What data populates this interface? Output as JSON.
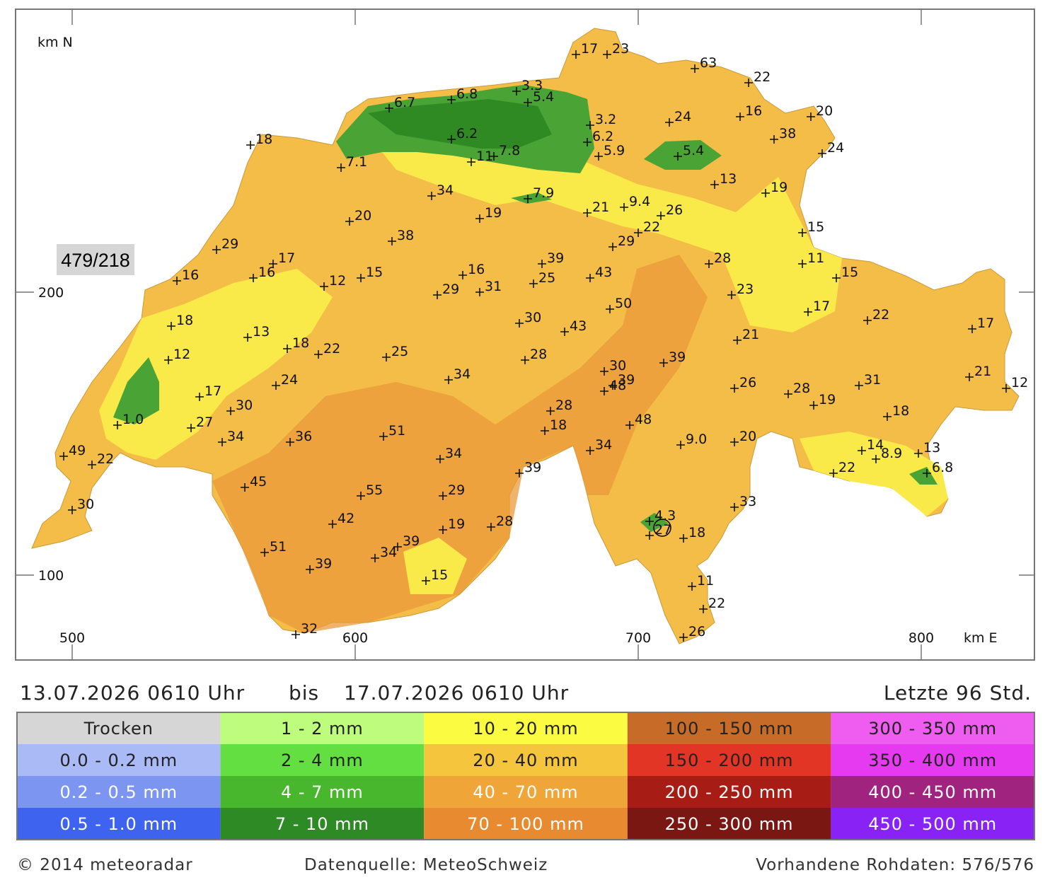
{
  "map": {
    "ylabel": "km N",
    "xlabel": "km E",
    "xlim": [
      480,
      840
    ],
    "ylim": [
      70,
      300
    ],
    "xticks": [
      500,
      600,
      700,
      800
    ],
    "yticks": [
      100,
      200
    ],
    "cursor_label": "479/218",
    "stations": [
      {
        "x": 678,
        "y": 284,
        "label": "17"
      },
      {
        "x": 689,
        "y": 284,
        "label": "23"
      },
      {
        "x": 720,
        "y": 279,
        "label": "63"
      },
      {
        "x": 739,
        "y": 274,
        "label": "22"
      },
      {
        "x": 761,
        "y": 262,
        "label": "20"
      },
      {
        "x": 736,
        "y": 262,
        "label": "16"
      },
      {
        "x": 748,
        "y": 254,
        "label": "38"
      },
      {
        "x": 765,
        "y": 249,
        "label": "24"
      },
      {
        "x": 711,
        "y": 260,
        "label": "24"
      },
      {
        "x": 683,
        "y": 259,
        "label": "3.2"
      },
      {
        "x": 682,
        "y": 253,
        "label": "6.2"
      },
      {
        "x": 686,
        "y": 248,
        "label": "5.9"
      },
      {
        "x": 714,
        "y": 248,
        "label": "5.4"
      },
      {
        "x": 727,
        "y": 238,
        "label": "13"
      },
      {
        "x": 745,
        "y": 235,
        "label": "19"
      },
      {
        "x": 758,
        "y": 221,
        "label": "15"
      },
      {
        "x": 758,
        "y": 210,
        "label": "11"
      },
      {
        "x": 770,
        "y": 205,
        "label": "15"
      },
      {
        "x": 657,
        "y": 271,
        "label": "3.3"
      },
      {
        "x": 661,
        "y": 267,
        "label": "5.4"
      },
      {
        "x": 634,
        "y": 268,
        "label": "6.8"
      },
      {
        "x": 612,
        "y": 265,
        "label": "6.7"
      },
      {
        "x": 634,
        "y": 254,
        "label": "6.2"
      },
      {
        "x": 649,
        "y": 248,
        "label": "7.8"
      },
      {
        "x": 641,
        "y": 246,
        "label": "11"
      },
      {
        "x": 595,
        "y": 244,
        "label": "7.1"
      },
      {
        "x": 563,
        "y": 252,
        "label": "18"
      },
      {
        "x": 627,
        "y": 234,
        "label": "34"
      },
      {
        "x": 661,
        "y": 233,
        "label": "7.9"
      },
      {
        "x": 644,
        "y": 226,
        "label": "19"
      },
      {
        "x": 682,
        "y": 228,
        "label": "21"
      },
      {
        "x": 695,
        "y": 230,
        "label": "9.4"
      },
      {
        "x": 708,
        "y": 227,
        "label": "26"
      },
      {
        "x": 700,
        "y": 221,
        "label": "22"
      },
      {
        "x": 691,
        "y": 216,
        "label": "29"
      },
      {
        "x": 598,
        "y": 225,
        "label": "20"
      },
      {
        "x": 613,
        "y": 218,
        "label": "38"
      },
      {
        "x": 551,
        "y": 215,
        "label": "29"
      },
      {
        "x": 571,
        "y": 210,
        "label": "17"
      },
      {
        "x": 564,
        "y": 205,
        "label": "16"
      },
      {
        "x": 537,
        "y": 204,
        "label": "16"
      },
      {
        "x": 589,
        "y": 202,
        "label": "12"
      },
      {
        "x": 602,
        "y": 205,
        "label": "15"
      },
      {
        "x": 638,
        "y": 206,
        "label": "16"
      },
      {
        "x": 666,
        "y": 210,
        "label": "39"
      },
      {
        "x": 663,
        "y": 203,
        "label": "25"
      },
      {
        "x": 683,
        "y": 205,
        "label": "43"
      },
      {
        "x": 629,
        "y": 199,
        "label": "29"
      },
      {
        "x": 644,
        "y": 200,
        "label": "31"
      },
      {
        "x": 690,
        "y": 194,
        "label": "50"
      },
      {
        "x": 725,
        "y": 210,
        "label": "28"
      },
      {
        "x": 733,
        "y": 199,
        "label": "23"
      },
      {
        "x": 760,
        "y": 193,
        "label": "17"
      },
      {
        "x": 781,
        "y": 190,
        "label": "22"
      },
      {
        "x": 818,
        "y": 187,
        "label": "17"
      },
      {
        "x": 535,
        "y": 188,
        "label": "18"
      },
      {
        "x": 534,
        "y": 176,
        "label": "12"
      },
      {
        "x": 562,
        "y": 184,
        "label": "13"
      },
      {
        "x": 576,
        "y": 180,
        "label": "18"
      },
      {
        "x": 587,
        "y": 178,
        "label": "22"
      },
      {
        "x": 611,
        "y": 177,
        "label": "25"
      },
      {
        "x": 658,
        "y": 189,
        "label": "30"
      },
      {
        "x": 674,
        "y": 186,
        "label": "43"
      },
      {
        "x": 660,
        "y": 176,
        "label": "28"
      },
      {
        "x": 633,
        "y": 169,
        "label": "34"
      },
      {
        "x": 572,
        "y": 167,
        "label": "24"
      },
      {
        "x": 545,
        "y": 163,
        "label": "17"
      },
      {
        "x": 556,
        "y": 158,
        "label": "30"
      },
      {
        "x": 542,
        "y": 152,
        "label": "27"
      },
      {
        "x": 516,
        "y": 153,
        "label": "1.0"
      },
      {
        "x": 553,
        "y": 147,
        "label": "34"
      },
      {
        "x": 577,
        "y": 147,
        "label": "36"
      },
      {
        "x": 497,
        "y": 142,
        "label": "49"
      },
      {
        "x": 507,
        "y": 139,
        "label": "22"
      },
      {
        "x": 688,
        "y": 172,
        "label": "30"
      },
      {
        "x": 691,
        "y": 167,
        "label": "39"
      },
      {
        "x": 688,
        "y": 165,
        "label": "48"
      },
      {
        "x": 709,
        "y": 175,
        "label": "39"
      },
      {
        "x": 735,
        "y": 183,
        "label": "21"
      },
      {
        "x": 734,
        "y": 166,
        "label": "26"
      },
      {
        "x": 753,
        "y": 164,
        "label": "28"
      },
      {
        "x": 762,
        "y": 160,
        "label": "19"
      },
      {
        "x": 778,
        "y": 167,
        "label": "31"
      },
      {
        "x": 817,
        "y": 170,
        "label": "21"
      },
      {
        "x": 830,
        "y": 166,
        "label": "12"
      },
      {
        "x": 788,
        "y": 156,
        "label": "18"
      },
      {
        "x": 669,
        "y": 158,
        "label": "28"
      },
      {
        "x": 667,
        "y": 151,
        "label": "18"
      },
      {
        "x": 697,
        "y": 153,
        "label": "48"
      },
      {
        "x": 610,
        "y": 149,
        "label": "51"
      },
      {
        "x": 630,
        "y": 141,
        "label": "34"
      },
      {
        "x": 683,
        "y": 144,
        "label": "34"
      },
      {
        "x": 715,
        "y": 146,
        "label": "9.0"
      },
      {
        "x": 734,
        "y": 147,
        "label": "20"
      },
      {
        "x": 779,
        "y": 144,
        "label": "14"
      },
      {
        "x": 784,
        "y": 141,
        "label": "8.9"
      },
      {
        "x": 799,
        "y": 143,
        "label": "13"
      },
      {
        "x": 769,
        "y": 136,
        "label": "22"
      },
      {
        "x": 802,
        "y": 136,
        "label": "6.8"
      },
      {
        "x": 658,
        "y": 136,
        "label": "39"
      },
      {
        "x": 561,
        "y": 131,
        "label": "45"
      },
      {
        "x": 602,
        "y": 128,
        "label": "55"
      },
      {
        "x": 631,
        "y": 128,
        "label": "29"
      },
      {
        "x": 500,
        "y": 123,
        "label": "30"
      },
      {
        "x": 592,
        "y": 118,
        "label": "42"
      },
      {
        "x": 631,
        "y": 116,
        "label": "19"
      },
      {
        "x": 648,
        "y": 117,
        "label": "28"
      },
      {
        "x": 734,
        "y": 124,
        "label": "33"
      },
      {
        "x": 704,
        "y": 119,
        "label": "4.3"
      },
      {
        "x": 704,
        "y": 114,
        "label": "27"
      },
      {
        "x": 716,
        "y": 113,
        "label": "18"
      },
      {
        "x": 568,
        "y": 108,
        "label": "51"
      },
      {
        "x": 584,
        "y": 102,
        "label": "39"
      },
      {
        "x": 607,
        "y": 106,
        "label": "34"
      },
      {
        "x": 615,
        "y": 110,
        "label": "39"
      },
      {
        "x": 625,
        "y": 98,
        "label": "15"
      },
      {
        "x": 719,
        "y": 96,
        "label": "11"
      },
      {
        "x": 723,
        "y": 88,
        "label": "22"
      },
      {
        "x": 716,
        "y": 78,
        "label": "26"
      },
      {
        "x": 579,
        "y": 79,
        "label": "32"
      }
    ]
  },
  "header": {
    "start": "13.07.2026 0610 Uhr",
    "separator": "bis",
    "end": "17.07.2026 0610 Uhr",
    "period": "Letzte 96 Std."
  },
  "legend": {
    "items": [
      {
        "label": "Trocken",
        "color": "#d6d6d6",
        "text_color": "#222222"
      },
      {
        "label": "0.0 - 0.2 mm",
        "color": "#aabaf6",
        "text_color": "#222222"
      },
      {
        "label": "0.2 - 0.5 mm",
        "color": "#7c95f0",
        "text_color": "#ffffff"
      },
      {
        "label": "0.5 - 1.0 mm",
        "color": "#3e63ee",
        "text_color": "#ffffff"
      },
      {
        "label": "1 - 2 mm",
        "color": "#befc7e",
        "text_color": "#222222"
      },
      {
        "label": "2 - 4 mm",
        "color": "#64df42",
        "text_color": "#222222"
      },
      {
        "label": "4 - 7 mm",
        "color": "#48b72e",
        "text_color": "#ffffff"
      },
      {
        "label": "7 - 10 mm",
        "color": "#2e8a24",
        "text_color": "#ffffff"
      },
      {
        "label": "10 - 20 mm",
        "color": "#fbfb42",
        "text_color": "#222222"
      },
      {
        "label": "20 - 40 mm",
        "color": "#f5c53e",
        "text_color": "#222222"
      },
      {
        "label": "40 - 70 mm",
        "color": "#f0a538",
        "text_color": "#ffffff"
      },
      {
        "label": "70 - 100 mm",
        "color": "#e88a30",
        "text_color": "#ffffff"
      },
      {
        "label": "100 - 150 mm",
        "color": "#c66c28",
        "text_color": "#222222"
      },
      {
        "label": "150 - 200 mm",
        "color": "#e33526",
        "text_color": "#222222"
      },
      {
        "label": "200 - 250 mm",
        "color": "#a71d16",
        "text_color": "#ffffff"
      },
      {
        "label": "250 - 300 mm",
        "color": "#7a1712",
        "text_color": "#ffffff"
      },
      {
        "label": "300 - 350 mm",
        "color": "#ee5cf0",
        "text_color": "#222222"
      },
      {
        "label": "350 - 400 mm",
        "color": "#e63af1",
        "text_color": "#222222"
      },
      {
        "label": "400 - 450 mm",
        "color": "#a0237f",
        "text_color": "#ffffff"
      },
      {
        "label": "450 - 500 mm",
        "color": "#8822f5",
        "text_color": "#ffffff"
      }
    ]
  },
  "footer": {
    "copyright": "© 2014 meteoradar",
    "source": "Datenquelle: MeteoSchweiz",
    "raw_data": "Vorhandene Rohdaten: 576/576"
  }
}
